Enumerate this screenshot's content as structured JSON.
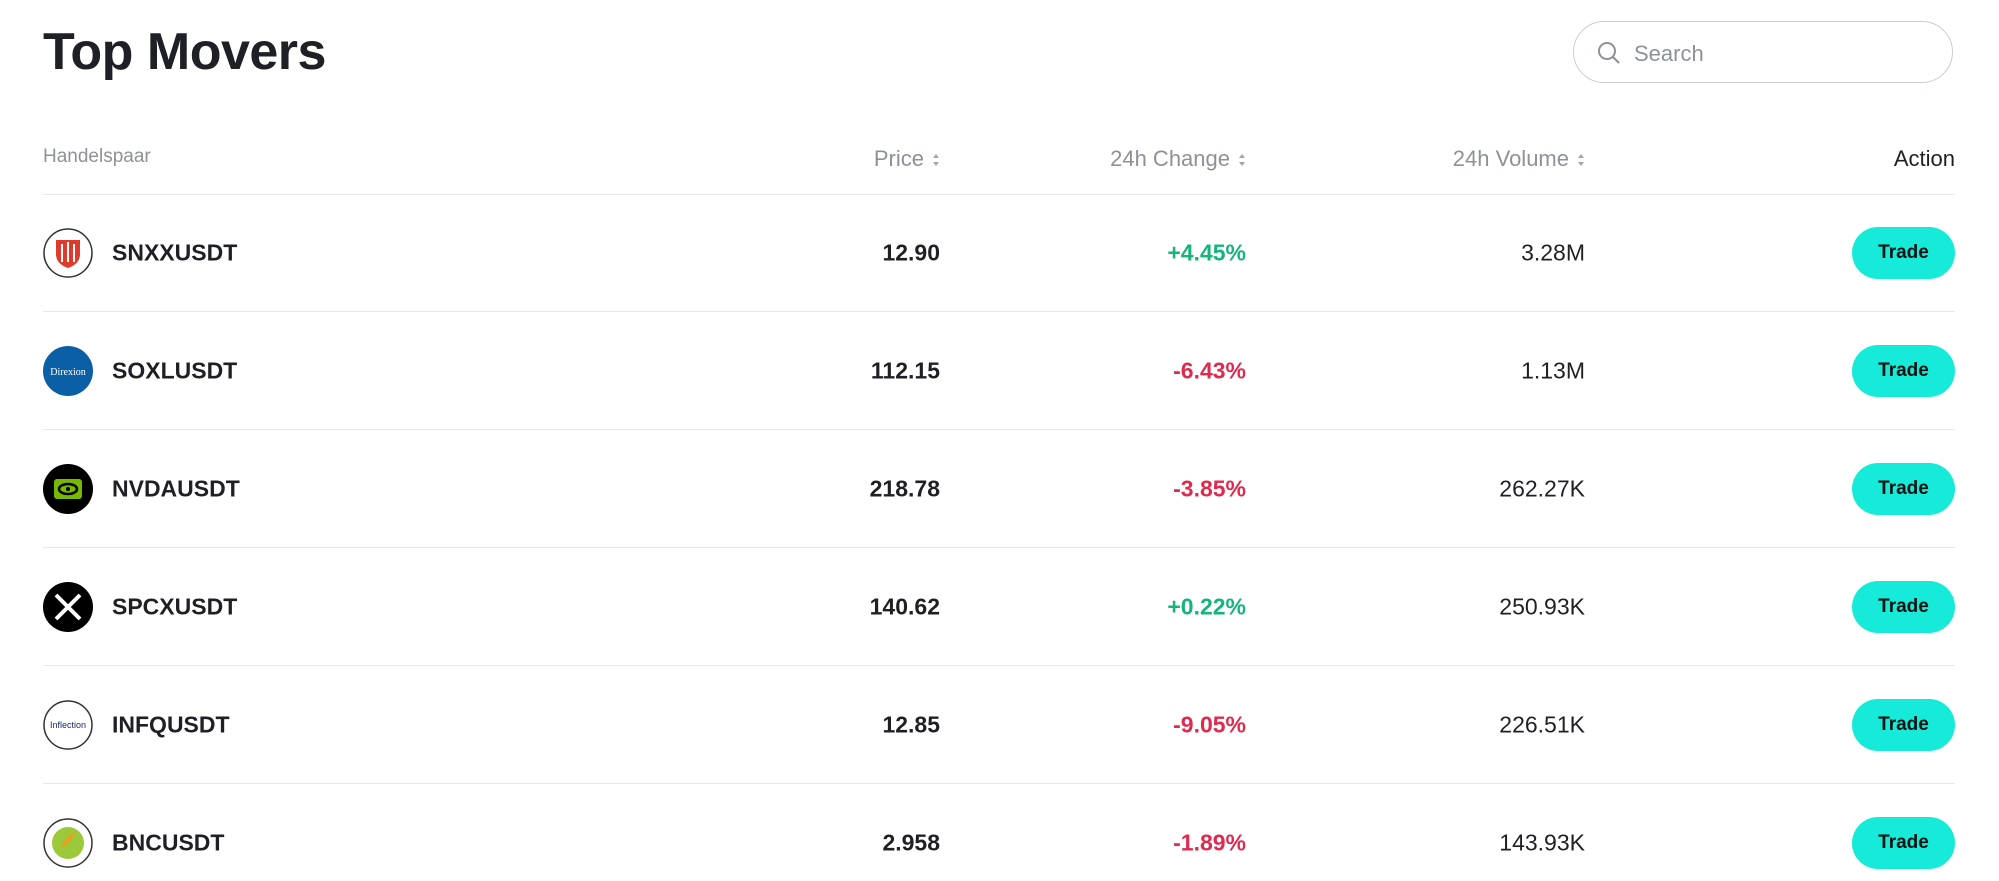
{
  "header": {
    "title": "Top Movers",
    "search_placeholder": "Search"
  },
  "table": {
    "columns": [
      "Handelspaar",
      "Price",
      "24h Change",
      "24h Volume",
      "Action"
    ],
    "rows": [
      [
        "SNXXUSDT",
        "12.90",
        "+4.45%",
        "3.28M",
        "Trade"
      ],
      [
        "SOXLUSDT",
        "112.15",
        "-6.43%",
        "1.13M",
        "Trade"
      ],
      [
        "NVDAUSDT",
        "218.78",
        "-3.85%",
        "262.27K",
        "Trade"
      ],
      [
        "SPCXUSDT",
        "140.62",
        "+0.22%",
        "250.93K",
        "Trade"
      ],
      [
        "INFQUSDT",
        "12.85",
        "-9.05%",
        "226.51K",
        "Trade"
      ],
      [
        "BNCUSDT",
        "2.958",
        "-1.89%",
        "143.93K",
        "Trade"
      ]
    ]
  }
}
